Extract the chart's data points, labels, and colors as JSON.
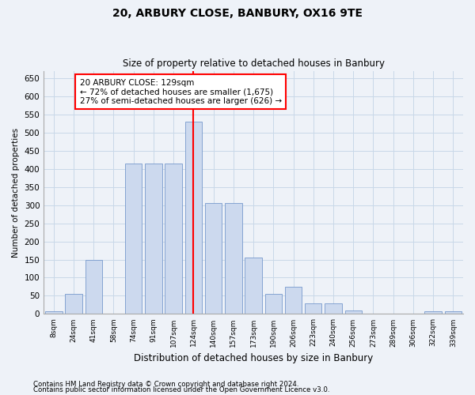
{
  "title": "20, ARBURY CLOSE, BANBURY, OX16 9TE",
  "subtitle": "Size of property relative to detached houses in Banbury",
  "xlabel": "Distribution of detached houses by size in Banbury",
  "ylabel": "Number of detached properties",
  "categories": [
    "8sqm",
    "24sqm",
    "41sqm",
    "58sqm",
    "74sqm",
    "91sqm",
    "107sqm",
    "124sqm",
    "140sqm",
    "157sqm",
    "173sqm",
    "190sqm",
    "206sqm",
    "223sqm",
    "240sqm",
    "256sqm",
    "273sqm",
    "289sqm",
    "306sqm",
    "322sqm",
    "339sqm"
  ],
  "values": [
    8,
    55,
    150,
    0,
    415,
    415,
    415,
    530,
    305,
    305,
    155,
    55,
    75,
    30,
    30,
    10,
    0,
    0,
    0,
    8,
    8
  ],
  "bar_color": "#ccd9ee",
  "bar_edge_color": "#7799cc",
  "vline_x_index": 7,
  "vline_color": "red",
  "annotation_text": "20 ARBURY CLOSE: 129sqm\n← 72% of detached houses are smaller (1,675)\n27% of semi-detached houses are larger (626) →",
  "annotation_box_color": "white",
  "annotation_box_edge_color": "red",
  "ylim": [
    0,
    670
  ],
  "yticks": [
    0,
    50,
    100,
    150,
    200,
    250,
    300,
    350,
    400,
    450,
    500,
    550,
    600,
    650
  ],
  "grid_color": "#c8d8e8",
  "footer1": "Contains HM Land Registry data © Crown copyright and database right 2024.",
  "footer2": "Contains public sector information licensed under the Open Government Licence v3.0.",
  "bg_color": "#eef2f8"
}
